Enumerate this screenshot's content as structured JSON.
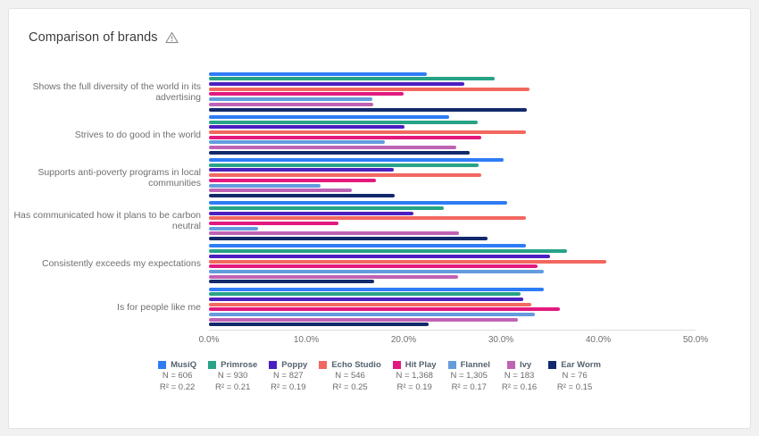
{
  "page": {
    "title": "Comparison of brands"
  },
  "chart_data": {
    "type": "bar",
    "orientation": "horizontal",
    "title": "Comparison of brands",
    "xlim": [
      0,
      50
    ],
    "x_tick_labels": [
      "0.0%",
      "10.0%",
      "20.0%",
      "30.0%",
      "40.0%",
      "50.0%"
    ],
    "grid": false,
    "legend_position": "bottom",
    "categories": [
      "Shows the full diversity of the world in its advertising",
      "Strives to do good in the world",
      "Supports anti-poverty programs in local communities",
      "Has communicated how it plans to be carbon neutral",
      "Consistently exceeds my expectations",
      "Is for people like me"
    ],
    "series": [
      {
        "name": "MusiQ",
        "color": "#2e7cf6",
        "n_label": "N = 606",
        "r2_label": "R² = 0.22",
        "values": [
          22.4,
          24.7,
          30.3,
          30.6,
          32.6,
          34.4
        ]
      },
      {
        "name": "Primrose",
        "color": "#27a387",
        "n_label": "N = 930",
        "r2_label": "R² = 0.21",
        "values": [
          29.4,
          27.6,
          27.7,
          24.1,
          36.8,
          32.0
        ]
      },
      {
        "name": "Poppy",
        "color": "#4c1fc1",
        "n_label": "N = 827",
        "r2_label": "R² = 0.19",
        "values": [
          26.2,
          20.1,
          19.0,
          21.0,
          35.0,
          32.3
        ]
      },
      {
        "name": "Echo Studio",
        "color": "#f26860",
        "n_label": "N = 546",
        "r2_label": "R² = 0.25",
        "values": [
          32.9,
          32.6,
          28.0,
          32.6,
          40.8,
          33.1
        ]
      },
      {
        "name": "Hit Play",
        "color": "#e3197e",
        "n_label": "N = 1,368",
        "r2_label": "R² = 0.19",
        "values": [
          20.0,
          28.0,
          17.2,
          13.3,
          33.8,
          36.1
        ]
      },
      {
        "name": "Flannel",
        "color": "#649bdd",
        "n_label": "N = 1,305",
        "r2_label": "R² = 0.17",
        "values": [
          16.8,
          18.1,
          11.5,
          5.0,
          34.4,
          33.5
        ]
      },
      {
        "name": "Ivy",
        "color": "#bf62b4",
        "n_label": "N = 183",
        "r2_label": "R² = 0.16",
        "values": [
          16.9,
          25.4,
          14.7,
          25.7,
          25.6,
          31.7
        ]
      },
      {
        "name": "Ear Worm",
        "color": "#12296b",
        "n_label": "N = 76",
        "r2_label": "R² = 0.15",
        "values": [
          32.7,
          26.8,
          19.1,
          28.6,
          17.0,
          22.6
        ]
      }
    ]
  }
}
